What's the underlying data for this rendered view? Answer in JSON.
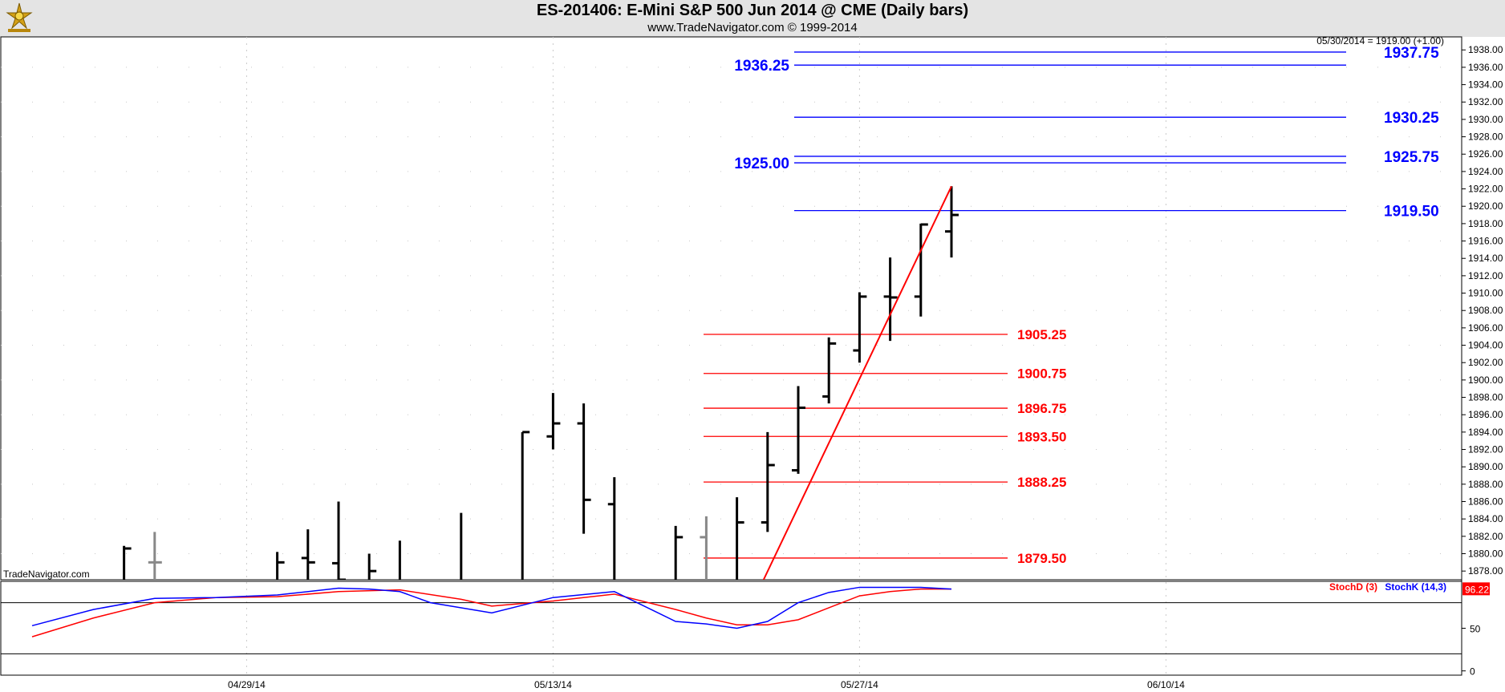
{
  "header": {
    "title": "ES-201406:  E-Mini S&P 500 Jun 2014 @ CME  (Daily bars)",
    "subtitle": "www.TradeNavigator.com © 1999-2014"
  },
  "last_price_label": "05/30/2014 = 1919.00 (+1.00)",
  "watermark": "TradeNavigator.com",
  "colors": {
    "header_bg": "#e4e4e4",
    "level_blue": "#0000ff",
    "level_red": "#ff0000",
    "bars": "#000000",
    "stoch_d": "#ff0000",
    "stoch_k": "#0000ff"
  },
  "chart_data": [
    {
      "type": "ohlc",
      "ylim": [
        1877,
        1939.5
      ],
      "y_ticks": [
        1878,
        1880,
        1882,
        1884,
        1886,
        1888,
        1890,
        1892,
        1894,
        1896,
        1898,
        1900,
        1902,
        1904,
        1906,
        1908,
        1910,
        1912,
        1914,
        1916,
        1918,
        1920,
        1922,
        1924,
        1926,
        1928,
        1930,
        1932,
        1934,
        1936,
        1938
      ],
      "x_tick_labels": [
        {
          "label": "04/29/14",
          "bar": 7
        },
        {
          "label": "05/13/14",
          "bar": 17
        },
        {
          "label": "05/27/14",
          "bar": 27
        },
        {
          "label": "06/10/14",
          "bar": 37
        }
      ],
      "bars": [
        {
          "i": 3,
          "o": 1876,
          "h": 1880.9,
          "l": 1876,
          "c": 1880.6
        },
        {
          "i": 4,
          "o": 1879,
          "h": 1882.5,
          "l": 1876,
          "c": 1879,
          "muted": true
        },
        {
          "i": 8,
          "o": 1876,
          "h": 1880.2,
          "l": 1876,
          "c": 1879
        },
        {
          "i": 9,
          "o": 1879.5,
          "h": 1882.8,
          "l": 1876,
          "c": 1879
        },
        {
          "i": 10,
          "o": 1878.9,
          "h": 1886,
          "l": 1876,
          "c": 1877
        },
        {
          "i": 11,
          "o": 1876,
          "h": 1880,
          "l": 1876,
          "c": 1878
        },
        {
          "i": 12,
          "o": 1876,
          "h": 1881.5,
          "l": 1876,
          "c": 1876
        },
        {
          "i": 14,
          "o": 1876,
          "h": 1884.7,
          "l": 1876,
          "c": 1876
        },
        {
          "i": 16,
          "o": 1876,
          "h": 1894,
          "l": 1876,
          "c": 1894
        },
        {
          "i": 17,
          "o": 1893.5,
          "h": 1898.5,
          "l": 1892,
          "c": 1895
        },
        {
          "i": 18,
          "o": 1895,
          "h": 1897.3,
          "l": 1882.3,
          "c": 1886.2
        },
        {
          "i": 19,
          "o": 1885.7,
          "h": 1888.8,
          "l": 1876,
          "c": 1876
        },
        {
          "i": 21,
          "o": 1876,
          "h": 1883.2,
          "l": 1876,
          "c": 1881.9
        },
        {
          "i": 22,
          "o": 1881.9,
          "h": 1884.3,
          "l": 1876,
          "c": 1876,
          "muted": true
        },
        {
          "i": 23,
          "o": 1876,
          "h": 1886.5,
          "l": 1876,
          "c": 1883.6
        },
        {
          "i": 24,
          "o": 1883.6,
          "h": 1894,
          "l": 1882.5,
          "c": 1890.2
        },
        {
          "i": 25,
          "o": 1889.6,
          "h": 1899.3,
          "l": 1889.2,
          "c": 1896.8
        },
        {
          "i": 26,
          "o": 1898.1,
          "h": 1904.9,
          "l": 1897.3,
          "c": 1904.2
        },
        {
          "i": 27,
          "o": 1903.4,
          "h": 1910.1,
          "l": 1902,
          "c": 1909.6
        },
        {
          "i": 28,
          "o": 1909.6,
          "h": 1914.1,
          "l": 1904.5,
          "c": 1909.5
        },
        {
          "i": 29,
          "o": 1909.6,
          "h": 1918,
          "l": 1907.3,
          "c": 1917.9
        },
        {
          "i": 30,
          "o": 1917.1,
          "h": 1922.3,
          "l": 1914.1,
          "c": 1919
        }
      ],
      "blue_levels": [
        {
          "label": "1937.75",
          "value": 1937.75,
          "side": "right"
        },
        {
          "label": "1936.25",
          "value": 1936.25,
          "side": "left"
        },
        {
          "label": "1930.25",
          "value": 1930.25,
          "side": "right"
        },
        {
          "label": "1925.75",
          "value": 1925.75,
          "side": "right"
        },
        {
          "label": "1925.00",
          "value": 1925.0,
          "side": "left"
        },
        {
          "label": "1919.50",
          "value": 1919.5,
          "side": "right"
        }
      ],
      "red_levels": [
        {
          "label": "1905.25",
          "value": 1905.25
        },
        {
          "label": "1900.75",
          "value": 1900.75
        },
        {
          "label": "1896.75",
          "value": 1896.75
        },
        {
          "label": "1893.50",
          "value": 1893.5
        },
        {
          "label": "1888.25",
          "value": 1888.25
        },
        {
          "label": "1879.50",
          "value": 1879.5
        }
      ],
      "trendline": {
        "from": {
          "bar": 24,
          "y": 1877
        },
        "to": {
          "bar": 30,
          "y": 1922.3
        }
      }
    },
    {
      "type": "line",
      "ylim": [
        -5,
        105
      ],
      "y_ticks": [
        0,
        50
      ],
      "reference_lines": [
        20,
        80
      ],
      "last_value_label": "96.22",
      "series": [
        {
          "name": "StochD (3)",
          "color": "#ff0000",
          "values": [
            [
              0,
              40
            ],
            [
              2,
              62
            ],
            [
              4,
              80
            ],
            [
              6,
              86
            ],
            [
              8,
              87
            ],
            [
              10,
              93
            ],
            [
              12,
              95
            ],
            [
              14,
              84
            ],
            [
              15,
              76
            ],
            [
              17,
              82
            ],
            [
              19,
              90
            ],
            [
              21,
              72
            ],
            [
              22,
              62
            ],
            [
              23,
              54
            ],
            [
              24,
              54
            ],
            [
              25,
              60
            ],
            [
              26,
              74
            ],
            [
              27,
              88
            ],
            [
              28,
              93
            ],
            [
              29,
              96
            ],
            [
              30,
              96
            ]
          ]
        },
        {
          "name": "StochK (14,3)",
          "color": "#0000ff",
          "values": [
            [
              0,
              53
            ],
            [
              2,
              72
            ],
            [
              4,
              85
            ],
            [
              6,
              86
            ],
            [
              8,
              89
            ],
            [
              10,
              97
            ],
            [
              11,
              96
            ],
            [
              12,
              93
            ],
            [
              13,
              80
            ],
            [
              15,
              68
            ],
            [
              17,
              86
            ],
            [
              19,
              93
            ],
            [
              21,
              58
            ],
            [
              22,
              55
            ],
            [
              23,
              50
            ],
            [
              24,
              58
            ],
            [
              25,
              80
            ],
            [
              26,
              92
            ],
            [
              27,
              98
            ],
            [
              28,
              98
            ],
            [
              29,
              98
            ],
            [
              30,
              96
            ]
          ]
        }
      ]
    }
  ]
}
